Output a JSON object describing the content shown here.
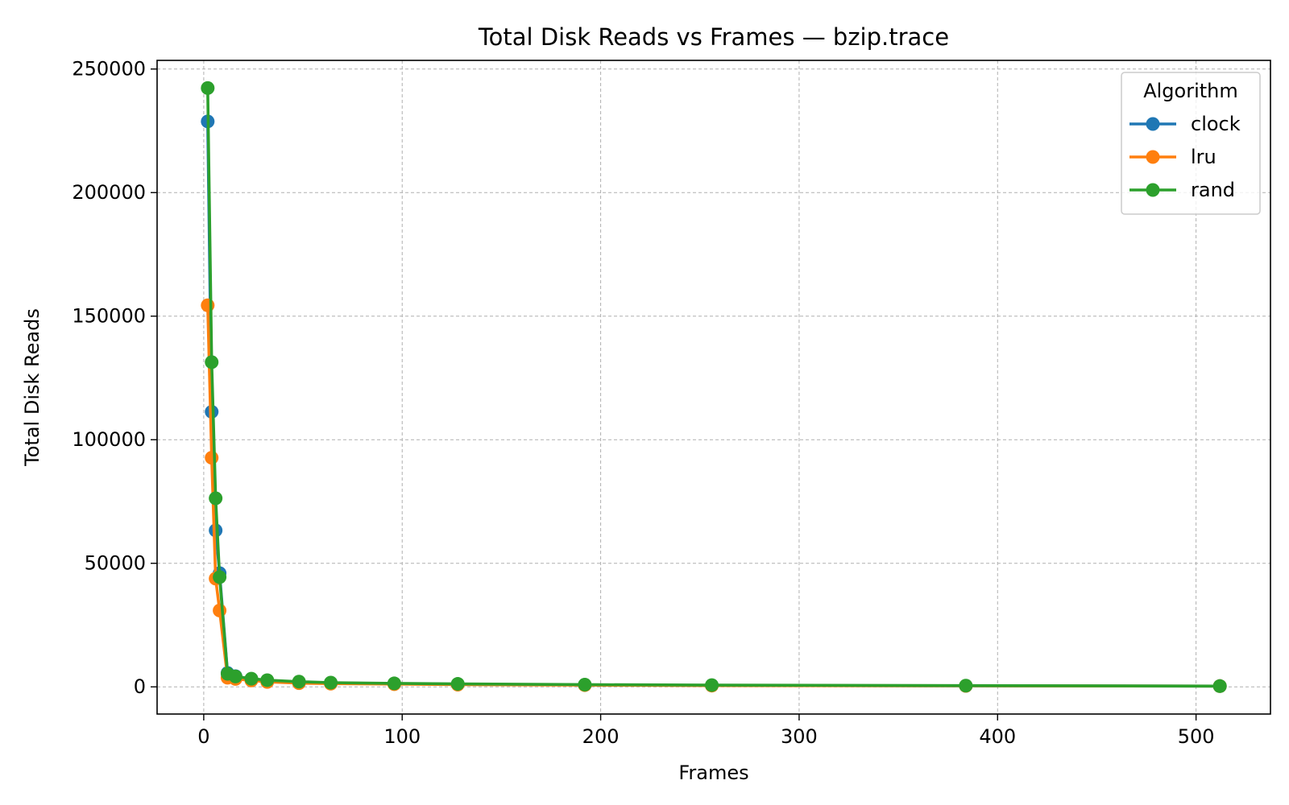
{
  "chart_data": {
    "type": "line",
    "title": "Total Disk Reads vs Frames — bzip.trace",
    "xlabel": "Frames",
    "ylabel": "Total Disk Reads",
    "xlim": [
      -23.5,
      537.5
    ],
    "ylim": [
      -11000,
      253500
    ],
    "xticks": [
      0,
      100,
      200,
      300,
      400,
      500
    ],
    "xtick_labels": [
      "0",
      "100",
      "200",
      "300",
      "400",
      "500"
    ],
    "yticks": [
      0,
      50000,
      100000,
      150000,
      200000,
      250000
    ],
    "ytick_labels": [
      "0",
      "50000",
      "100000",
      "150000",
      "200000",
      "250000"
    ],
    "grid": true,
    "legend": {
      "title": "Algorithm",
      "placement": "top-right"
    },
    "x": [
      2,
      4,
      6,
      8,
      12,
      16,
      24,
      32,
      48,
      64,
      96,
      128,
      192,
      256,
      384,
      512
    ],
    "series": [
      {
        "name": "clock",
        "color": "#1f77b4",
        "values": [
          228800,
          111300,
          63300,
          46000,
          5600,
          4300,
          3200,
          2500,
          1800,
          1600,
          1300,
          1100,
          800,
          600,
          400,
          300
        ]
      },
      {
        "name": "lru",
        "color": "#ff7f0e",
        "values": [
          154400,
          92700,
          43800,
          30900,
          3700,
          3200,
          2600,
          2000,
          1500,
          1300,
          1100,
          900,
          700,
          500,
          400,
          300
        ]
      },
      {
        "name": "rand",
        "color": "#2ca02c",
        "values": [
          242300,
          131400,
          76300,
          44400,
          5300,
          4200,
          3300,
          2700,
          2100,
          1700,
          1400,
          1200,
          900,
          700,
          500,
          300
        ]
      }
    ]
  }
}
